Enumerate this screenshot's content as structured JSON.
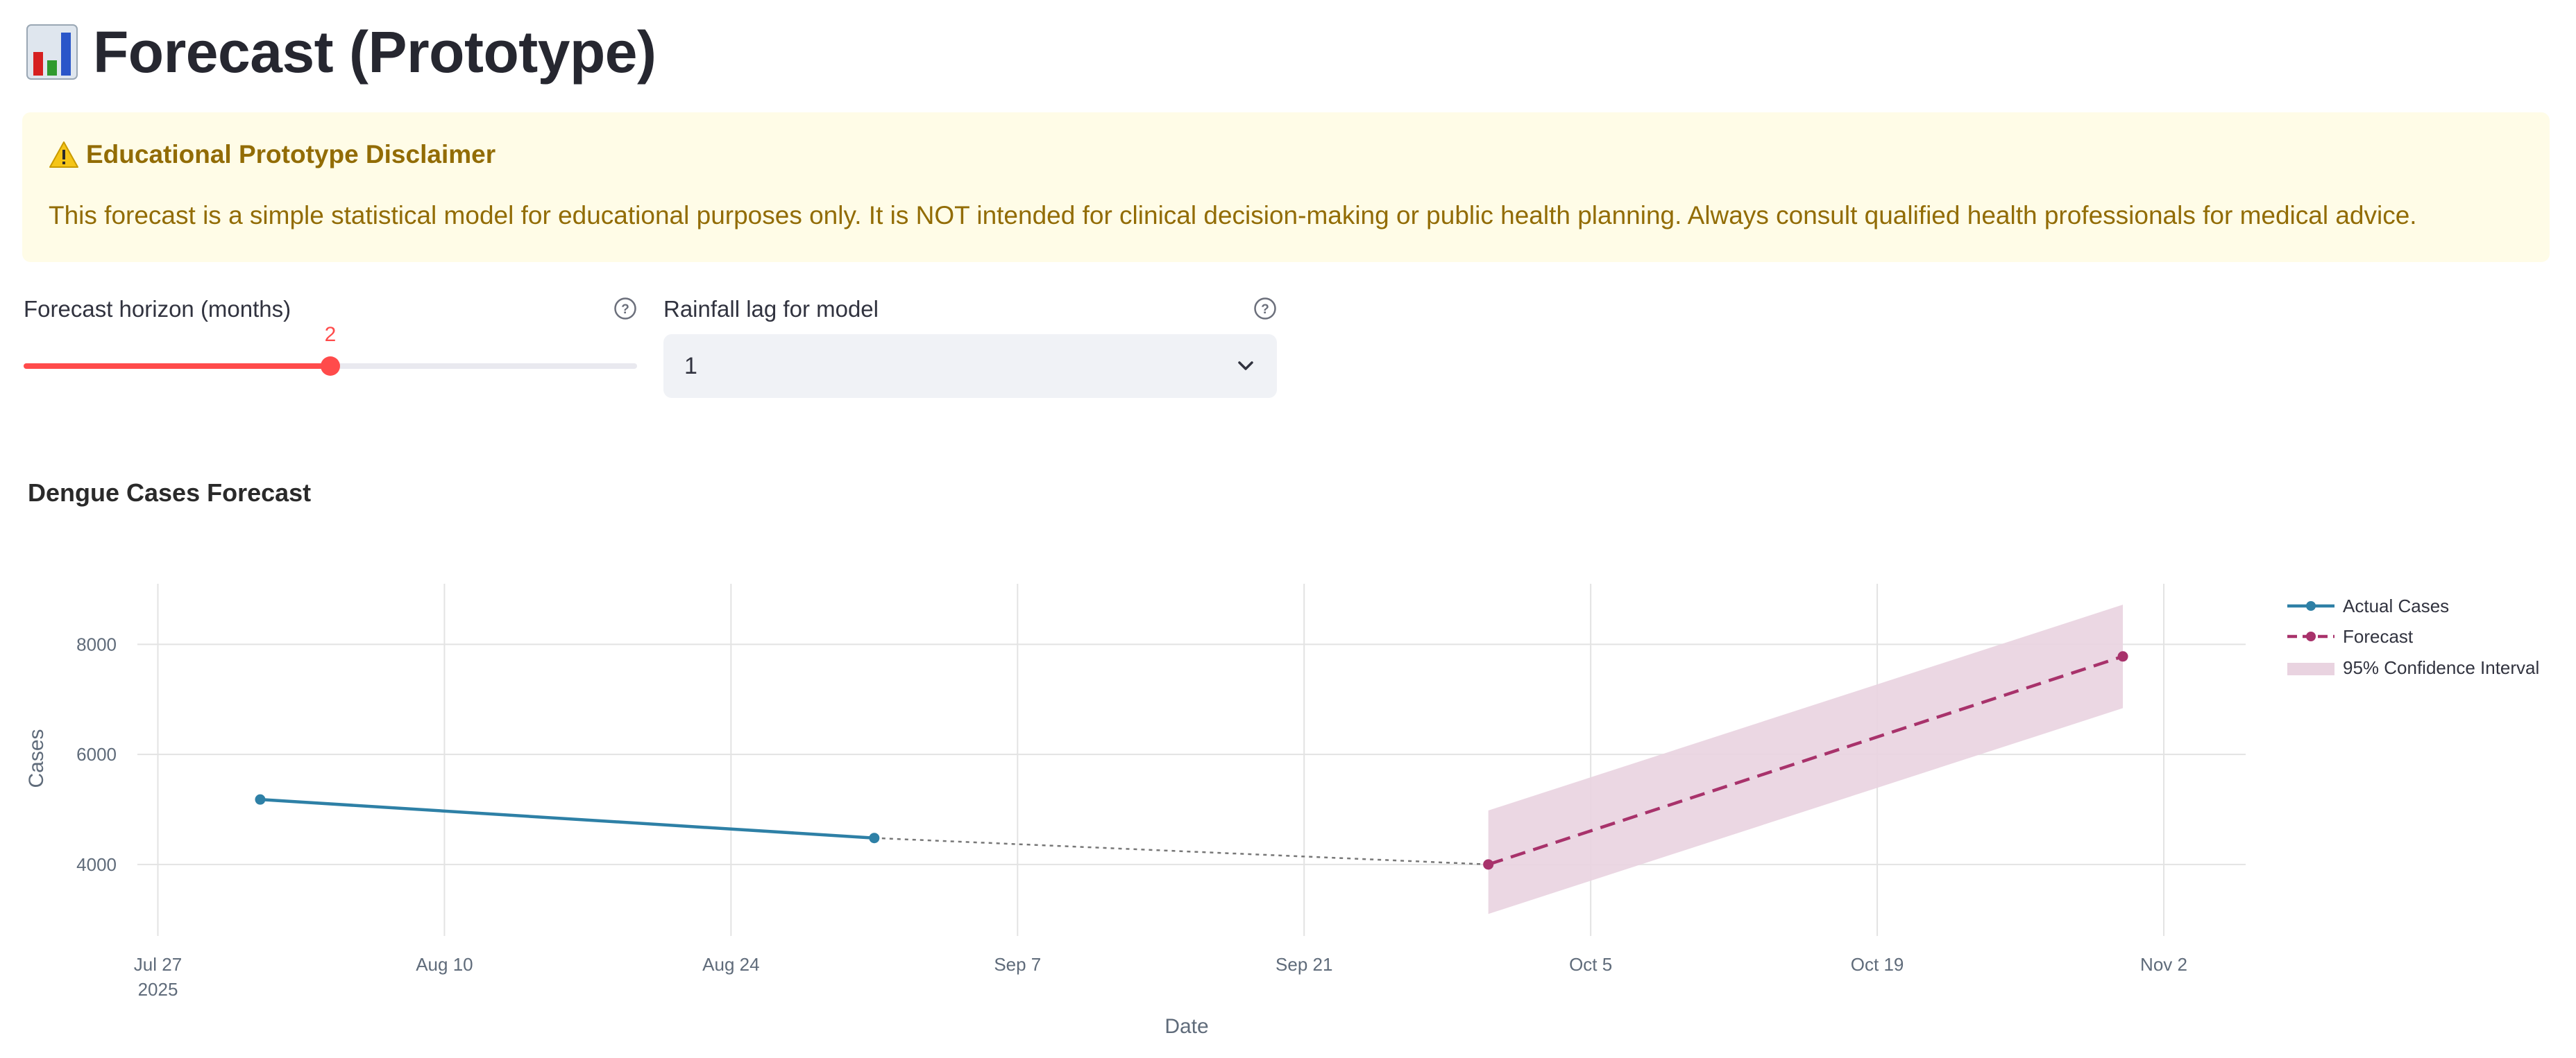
{
  "page": {
    "title_icon": "bar-chart-emoji-icon",
    "title": "Forecast (Prototype)"
  },
  "disclaimer": {
    "icon": "warning-icon",
    "heading": "Educational Prototype Disclaimer",
    "body": "This forecast is a simple statistical model for educational purposes only. It is NOT intended for clinical decision-making or public health planning. Always consult qualified health professionals for medical advice."
  },
  "controls": {
    "horizon": {
      "label": "Forecast horizon (months)",
      "value": "2",
      "fraction": 0.5
    },
    "lag": {
      "label": "Rainfall lag for model",
      "selected": "1"
    }
  },
  "colors": {
    "accent": "#ff4b4b",
    "actual": "#2e80a6",
    "forecast": "#a8326b",
    "ci": "#e9d3e0",
    "connector": "#777777"
  },
  "chart_data": {
    "type": "line",
    "title": "Dengue Cases Forecast",
    "xlabel": "Date",
    "ylabel": "Cases",
    "x_ticks": [
      {
        "date": "2025-07-27",
        "label": "Jul 27",
        "sub": "2025"
      },
      {
        "date": "2025-08-10",
        "label": "Aug 10"
      },
      {
        "date": "2025-08-24",
        "label": "Aug 24"
      },
      {
        "date": "2025-09-07",
        "label": "Sep 7"
      },
      {
        "date": "2025-09-21",
        "label": "Sep 21"
      },
      {
        "date": "2025-10-05",
        "label": "Oct 5"
      },
      {
        "date": "2025-10-19",
        "label": "Oct 19"
      },
      {
        "date": "2025-11-02",
        "label": "Nov 2"
      }
    ],
    "y_ticks": [
      4000,
      6000,
      8000
    ],
    "xlim": [
      "2025-07-26",
      "2025-11-06"
    ],
    "ylim": [
      2700,
      9100
    ],
    "grid": true,
    "legend_position": "top-right",
    "series": [
      {
        "name": "Actual Cases",
        "style": "solid-markers",
        "points": [
          {
            "x": "2025-08-01",
            "y": 5180
          },
          {
            "x": "2025-08-31",
            "y": 4480
          }
        ]
      },
      {
        "name": "Forecast",
        "style": "dashed-markers",
        "points": [
          {
            "x": "2025-09-30",
            "y": 4000
          },
          {
            "x": "2025-10-31",
            "y": 7780
          }
        ]
      }
    ],
    "connector": {
      "style": "dotted",
      "points": [
        {
          "x": "2025-08-31",
          "y": 4480
        },
        {
          "x": "2025-09-30",
          "y": 4000
        }
      ]
    },
    "confidence_interval": {
      "name": "95% Confidence Interval",
      "points": [
        {
          "x": "2025-09-30",
          "lower": 3100,
          "upper": 4980
        },
        {
          "x": "2025-10-31",
          "lower": 6840,
          "upper": 8720
        }
      ]
    }
  }
}
